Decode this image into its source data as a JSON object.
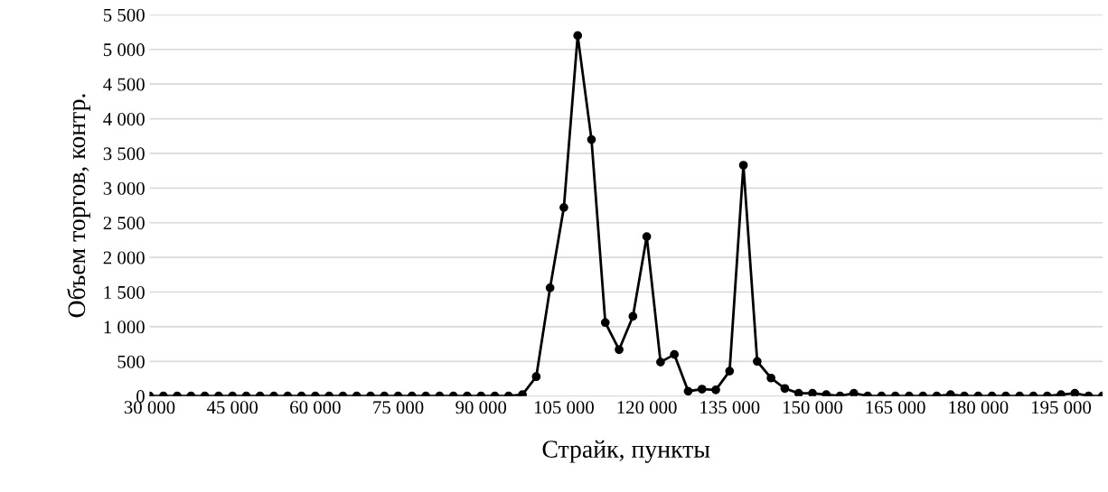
{
  "chart_data": {
    "type": "line",
    "xlabel": "Страйк, пункты",
    "ylabel": "Объем торгов, контр.",
    "x": [
      30000,
      32500,
      35000,
      37500,
      40000,
      42500,
      45000,
      47500,
      50000,
      52500,
      55000,
      57500,
      60000,
      62500,
      65000,
      67500,
      70000,
      72500,
      75000,
      77500,
      80000,
      82500,
      85000,
      87500,
      90000,
      92500,
      95000,
      97500,
      100000,
      102500,
      105000,
      107500,
      110000,
      112500,
      115000,
      117500,
      120000,
      122500,
      125000,
      127500,
      130000,
      132500,
      135000,
      137500,
      140000,
      142500,
      145000,
      147500,
      150000,
      152500,
      155000,
      157500,
      160000,
      162500,
      165000,
      167500,
      170000,
      172500,
      175000,
      177500,
      180000,
      182500,
      185000,
      187500,
      190000,
      192500,
      195000,
      197500,
      200000,
      202500
    ],
    "series": [
      {
        "color": "#000000",
        "values": [
          0,
          0,
          0,
          0,
          0,
          0,
          0,
          0,
          0,
          0,
          0,
          0,
          0,
          0,
          0,
          0,
          0,
          0,
          0,
          0,
          0,
          0,
          0,
          0,
          0,
          0,
          0,
          20,
          280,
          1560,
          2720,
          5200,
          3700,
          1060,
          670,
          1150,
          2300,
          490,
          600,
          70,
          100,
          90,
          360,
          3330,
          500,
          260,
          110,
          40,
          40,
          20,
          0,
          40,
          0,
          0,
          0,
          0,
          0,
          0,
          20,
          0,
          0,
          0,
          0,
          0,
          0,
          0,
          20,
          40,
          0,
          0
        ]
      }
    ],
    "xlim": [
      30000,
      202500
    ],
    "xticks": [
      {
        "value": 30000,
        "label": "30 000"
      },
      {
        "value": 45000,
        "label": "45 000"
      },
      {
        "value": 60000,
        "label": "60 000"
      },
      {
        "value": 75000,
        "label": "75 000"
      },
      {
        "value": 90000,
        "label": "90 000"
      },
      {
        "value": 105000,
        "label": "105 000"
      },
      {
        "value": 120000,
        "label": "120 000"
      },
      {
        "value": 135000,
        "label": "135 000"
      },
      {
        "value": 150000,
        "label": "150 000"
      },
      {
        "value": 165000,
        "label": "165 000"
      },
      {
        "value": 180000,
        "label": "180 000"
      },
      {
        "value": 195000,
        "label": "195 000"
      }
    ],
    "ylim": [
      0,
      5500
    ],
    "yticks": [
      0,
      500,
      {
        "value": 1000,
        "label": "1 000"
      },
      {
        "value": 1500,
        "label": "1 500"
      },
      {
        "value": 2000,
        "label": "2 000"
      },
      {
        "value": 2500,
        "label": "2 500"
      },
      {
        "value": 3000,
        "label": "3 000"
      },
      {
        "value": 3500,
        "label": "3 500"
      },
      {
        "value": 4000,
        "label": "4 000"
      },
      {
        "value": 4500,
        "label": "4 500"
      },
      {
        "value": 5000,
        "label": "5 000"
      },
      {
        "value": 5500,
        "label": "5 500"
      }
    ],
    "grid": "y",
    "marker": "circle",
    "line_style": "solid"
  }
}
